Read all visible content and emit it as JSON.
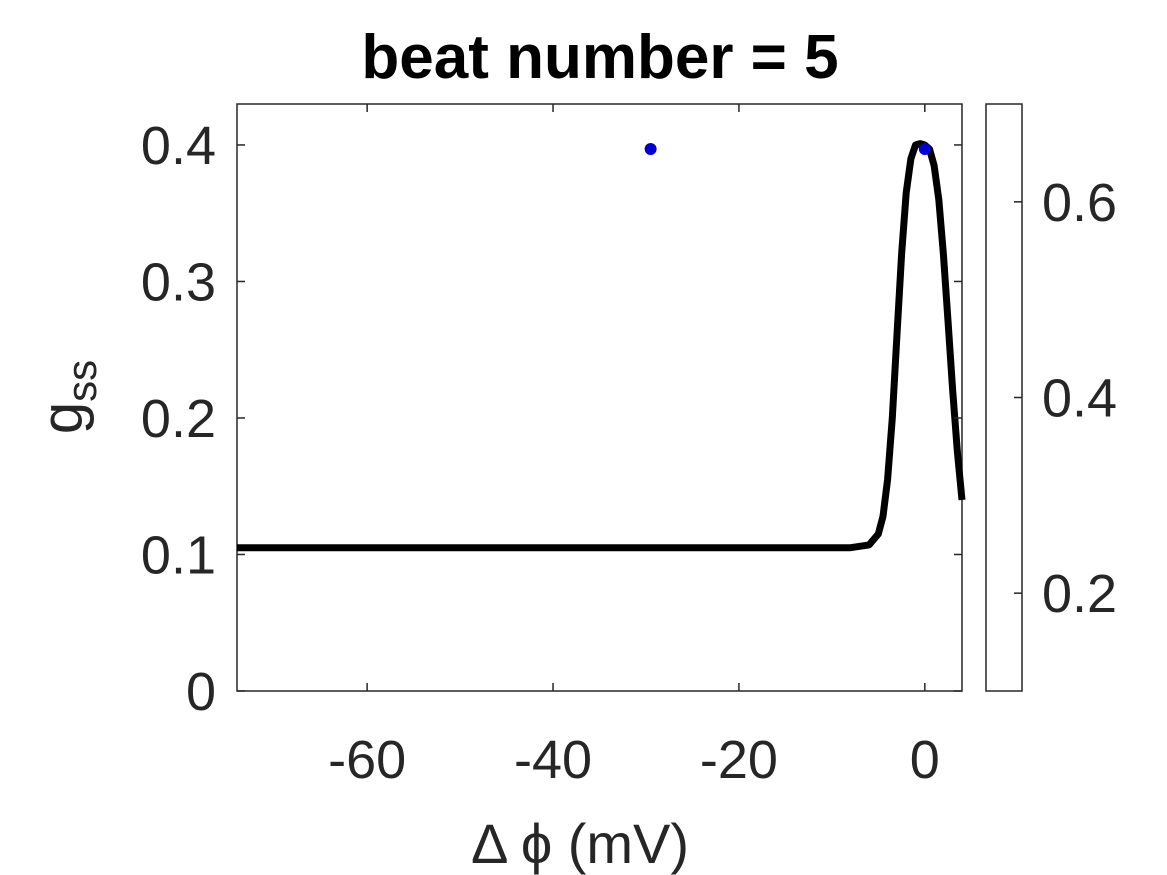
{
  "chart_data": {
    "type": "scatter",
    "title": "beat number = 5",
    "xlabel": "Δ ϕ (mV)",
    "ylabel": "g",
    "ylabel_subscript": "ss",
    "xlim": [
      -74,
      4
    ],
    "ylim": [
      0,
      0.43
    ],
    "xticks": [
      -60,
      -40,
      -20,
      0
    ],
    "yticks": [
      0,
      0.1,
      0.2,
      0.3,
      0.4
    ],
    "grid": false,
    "line_series": {
      "color": "#000000",
      "description": "steady-state curve",
      "x": [
        -74,
        -60,
        -40,
        -20,
        -8,
        -6,
        -5,
        -4.5,
        -4,
        -3.5,
        -3,
        -2.5,
        -2,
        -1.5,
        -1,
        -0.5,
        0,
        0.5,
        1,
        1.5,
        2,
        2.5,
        3,
        3.5,
        4
      ],
      "y": [
        0.105,
        0.105,
        0.105,
        0.105,
        0.105,
        0.107,
        0.115,
        0.128,
        0.155,
        0.2,
        0.26,
        0.32,
        0.365,
        0.39,
        0.4,
        0.401,
        0.4,
        0.397,
        0.385,
        0.36,
        0.32,
        0.27,
        0.22,
        0.175,
        0.14
      ]
    },
    "points": [
      {
        "x": -29.5,
        "y": 0.397,
        "c": 0.15
      },
      {
        "x": 0,
        "y": 0.397,
        "c": 0.15
      }
    ],
    "colorbar": {
      "colormap": "jet",
      "range": [
        0.1,
        0.7
      ],
      "ticks": [
        0.2,
        0.4,
        0.6
      ]
    }
  }
}
